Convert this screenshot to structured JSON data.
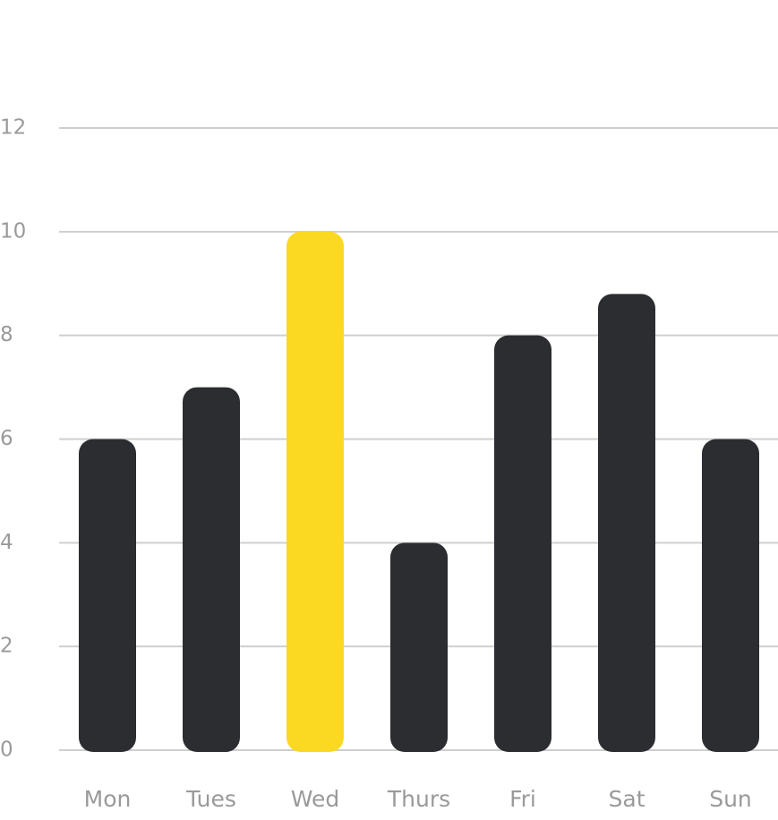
{
  "chart_data": {
    "type": "bar",
    "categories": [
      "Mon",
      "Tues",
      "Wed",
      "Thurs",
      "Fri",
      "Sat",
      "Sun"
    ],
    "values": [
      6,
      7,
      10,
      4,
      8,
      8.8,
      6
    ],
    "colors": [
      "#2b2d30",
      "#2b2d30",
      "#fbd822",
      "#2b2d30",
      "#2b2d30",
      "#2b2d30",
      "#2b2d30"
    ],
    "ylim": [
      0,
      12
    ],
    "yticks": [
      0,
      2,
      4,
      6,
      8,
      10,
      12
    ],
    "grid": true
  }
}
